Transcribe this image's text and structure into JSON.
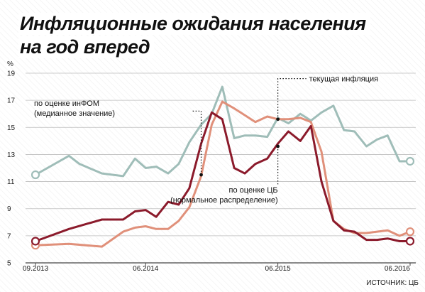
{
  "title_line1": "Инфляционные ожидания населения",
  "title_line2": "на год вперед",
  "source": "ИСТОЧНИК: ЦБ",
  "chart_data": {
    "type": "line",
    "ylabel": "%",
    "ylim": [
      5,
      19
    ],
    "yticks": [
      5,
      7,
      9,
      11,
      13,
      15,
      17,
      19
    ],
    "xlim": [
      2013.667,
      2016.5
    ],
    "xtick_labels": [
      {
        "x": 2013.667,
        "label": "09.2013"
      },
      {
        "x": 2014.5,
        "label": "06.2014"
      },
      {
        "x": 2015.5,
        "label": "06.2015"
      },
      {
        "x": 2016.5,
        "label": "06.2016"
      }
    ],
    "grid": true,
    "series": [
      {
        "name": "по оценке инФОМ (медианное значение)",
        "color": "#9fbdb8",
        "end_markers": true,
        "x": [
          2013.667,
          2013.92,
          2014.0,
          2014.17,
          2014.33,
          2014.42,
          2014.5,
          2014.58,
          2014.67,
          2014.75,
          2014.83,
          2014.92,
          2015.0,
          2015.08,
          2015.17,
          2015.25,
          2015.33,
          2015.42,
          2015.5,
          2015.58,
          2015.67,
          2015.75,
          2015.83,
          2015.92,
          2016.0,
          2016.08,
          2016.17,
          2016.25,
          2016.33,
          2016.42,
          2016.5
        ],
        "values": [
          11.5,
          12.9,
          12.3,
          11.6,
          11.4,
          12.7,
          12.0,
          12.1,
          11.6,
          12.3,
          13.9,
          15.2,
          16.0,
          18.0,
          14.2,
          14.4,
          14.4,
          14.3,
          15.7,
          15.3,
          16.0,
          15.5,
          16.1,
          16.6,
          14.8,
          14.7,
          13.6,
          14.1,
          14.4,
          12.5,
          12.5
        ]
      },
      {
        "name": "по оценке ЦБ (нормальное распределение)",
        "color": "#8b1a2b",
        "end_markers": true,
        "x": [
          2013.667,
          2013.92,
          2014.17,
          2014.33,
          2014.42,
          2014.5,
          2014.58,
          2014.67,
          2014.75,
          2014.83,
          2014.92,
          2015.0,
          2015.08,
          2015.17,
          2015.25,
          2015.33,
          2015.42,
          2015.5,
          2015.58,
          2015.67,
          2015.75,
          2015.83,
          2015.92,
          2016.0,
          2016.08,
          2016.17,
          2016.25,
          2016.33,
          2016.42,
          2016.5
        ],
        "values": [
          6.6,
          7.5,
          8.2,
          8.2,
          8.8,
          8.9,
          8.4,
          9.5,
          9.3,
          10.5,
          13.8,
          16.1,
          15.6,
          12.0,
          11.6,
          12.3,
          12.7,
          13.8,
          14.7,
          14.0,
          15.1,
          11.0,
          8.1,
          7.4,
          7.3,
          6.7,
          6.7,
          6.8,
          6.6,
          6.6
        ]
      },
      {
        "name": "текущая инфляция",
        "color": "#e0907a",
        "end_markers": true,
        "x": [
          2013.667,
          2013.92,
          2014.17,
          2014.33,
          2014.42,
          2014.5,
          2014.58,
          2014.67,
          2014.75,
          2014.83,
          2014.92,
          2015.0,
          2015.08,
          2015.17,
          2015.25,
          2015.33,
          2015.42,
          2015.5,
          2015.58,
          2015.67,
          2015.75,
          2015.83,
          2015.92,
          2016.0,
          2016.08,
          2016.17,
          2016.25,
          2016.33,
          2016.42,
          2016.5
        ],
        "values": [
          6.3,
          6.4,
          6.2,
          7.3,
          7.6,
          7.7,
          7.5,
          7.5,
          8.1,
          9.1,
          11.4,
          15.2,
          16.9,
          16.4,
          15.9,
          15.4,
          15.8,
          15.6,
          15.6,
          15.7,
          15.4,
          13.2,
          8.1,
          7.5,
          7.2,
          7.2,
          7.3,
          7.4,
          7.0,
          7.3
        ]
      }
    ],
    "annotations": [
      {
        "lines": [
          "текущая инфляция"
        ],
        "series": 2,
        "x": 2015.5,
        "value": 15.6
      },
      {
        "lines": [
          "по оценке инФОМ",
          "(медианное значение)"
        ],
        "series": 0,
        "x": 2014.92,
        "value": 11.5
      },
      {
        "lines": [
          "по оценке ЦБ",
          "(нормальное распределение)"
        ],
        "series": 1,
        "x": 2015.5,
        "value": 13.6
      }
    ]
  }
}
